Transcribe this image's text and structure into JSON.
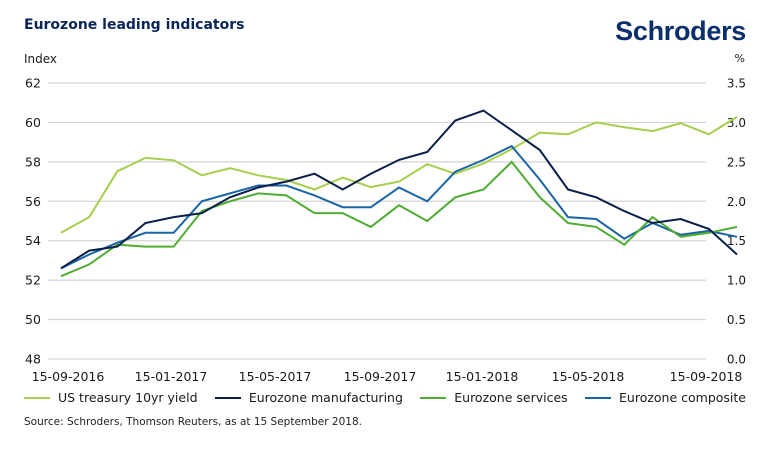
{
  "header": {
    "title": "Eurozone leading indicators",
    "logo": "Schroders"
  },
  "axes": {
    "left_unit": "Index",
    "right_unit": "%"
  },
  "source": "Source: Schroders, Thomson Reuters, as at 15 September 2018.",
  "chart_data": {
    "type": "line",
    "title": "Eurozone leading indicators",
    "xlabel": "",
    "ylabel": "Index",
    "y2label": "%",
    "ylim": [
      48,
      62
    ],
    "y2lim": [
      0.0,
      3.5
    ],
    "yticks": [
      "62",
      "60",
      "58",
      "56",
      "54",
      "52",
      "50",
      "48"
    ],
    "y2ticks": [
      "3.5",
      "3.0",
      "2.5",
      "2.0",
      "1.5",
      "1.0",
      "0.5",
      "0.0"
    ],
    "xticks": [
      "15-09-2016",
      "15-01-2017",
      "15-05-2017",
      "15-09-2017",
      "15-01-2018",
      "15-05-2018",
      "15-09-2018"
    ],
    "grid": true,
    "legend_position": "bottom",
    "x_count": 25,
    "series": [
      {
        "name": "US treasury 10yr yield",
        "axis": "right",
        "color": "#a5cf4c",
        "values": [
          1.6,
          1.8,
          2.38,
          2.55,
          2.52,
          2.33,
          2.42,
          2.33,
          2.27,
          2.15,
          2.3,
          2.18,
          2.25,
          2.47,
          2.35,
          2.48,
          2.66,
          2.87,
          2.85,
          3.0,
          2.94,
          2.89,
          2.99,
          2.85,
          3.07
        ]
      },
      {
        "name": "Eurozone manufacturing",
        "axis": "left",
        "color": "#0b1f4b",
        "values": [
          52.6,
          53.5,
          53.7,
          54.9,
          55.2,
          55.4,
          56.2,
          56.7,
          57.0,
          57.4,
          56.6,
          57.4,
          58.1,
          58.5,
          60.1,
          60.6,
          59.6,
          58.6,
          56.6,
          56.2,
          55.5,
          54.9,
          55.1,
          54.6,
          53.3
        ]
      },
      {
        "name": "Eurozone services",
        "axis": "left",
        "color": "#4fad34",
        "values": [
          52.2,
          52.8,
          53.8,
          53.7,
          53.7,
          55.5,
          56.0,
          56.4,
          56.3,
          55.4,
          55.4,
          54.7,
          55.8,
          55.0,
          56.2,
          56.6,
          58.0,
          56.2,
          54.9,
          54.7,
          53.8,
          55.2,
          54.2,
          54.4,
          54.7
        ]
      },
      {
        "name": "Eurozone composite",
        "axis": "left",
        "color": "#1a65a6",
        "values": [
          52.6,
          53.3,
          53.9,
          54.4,
          54.4,
          56.0,
          56.4,
          56.8,
          56.8,
          56.3,
          55.7,
          55.7,
          56.7,
          56.0,
          57.5,
          58.1,
          58.8,
          57.1,
          55.2,
          55.1,
          54.1,
          54.9,
          54.3,
          54.5,
          54.2
        ]
      }
    ]
  }
}
